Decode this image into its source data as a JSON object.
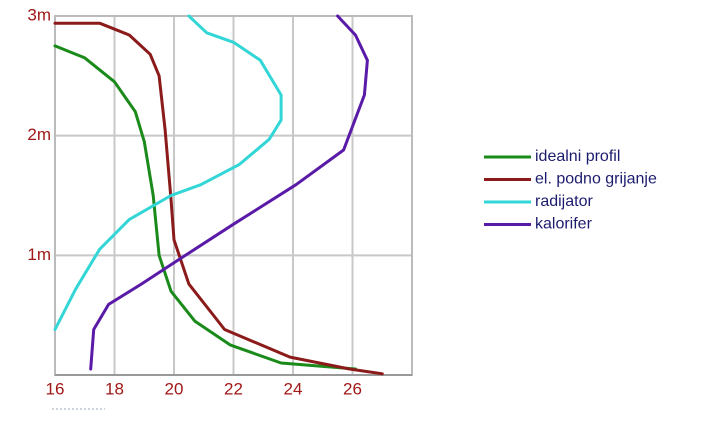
{
  "chart_data": {
    "type": "line",
    "xlim": [
      16,
      28
    ],
    "ylim": [
      0,
      3
    ],
    "xticks": [
      16,
      18,
      20,
      22,
      24,
      26
    ],
    "yticks": [
      {
        "value": 1,
        "label": "1m"
      },
      {
        "value": 2,
        "label": "2m"
      },
      {
        "value": 3,
        "label": "3m"
      }
    ],
    "grid": true,
    "legend": "right",
    "series": [
      {
        "name": "idealni profil",
        "color": "#1a8a1a",
        "x": [
          16,
          17,
          18,
          18.7,
          19,
          19.3,
          19.5,
          19.9,
          20.7,
          21.9,
          23.6,
          26.1
        ],
        "values": [
          2.75,
          2.65,
          2.45,
          2.2,
          1.95,
          1.5,
          1.0,
          0.7,
          0.45,
          0.25,
          0.1,
          0.05
        ]
      },
      {
        "name": "el. podno grijanje",
        "color": "#8b1a1a",
        "x": [
          16,
          17.5,
          18.5,
          19.2,
          19.5,
          19.7,
          19.9,
          20.0,
          20.5,
          21.7,
          23.9,
          25.9,
          27
        ],
        "values": [
          2.94,
          2.94,
          2.84,
          2.68,
          2.5,
          2.05,
          1.47,
          1.13,
          0.76,
          0.38,
          0.15,
          0.05,
          0.01
        ]
      },
      {
        "name": "radijator",
        "color": "#33d6d6",
        "x": [
          20.5,
          21.1,
          22,
          22.9,
          23.6,
          23.6,
          23.2,
          22.2,
          20.9,
          19.9,
          18.5,
          17.5,
          16.7,
          16
        ],
        "values": [
          3.0,
          2.86,
          2.78,
          2.63,
          2.34,
          2.13,
          1.97,
          1.76,
          1.59,
          1.5,
          1.3,
          1.05,
          0.72,
          0.38
        ]
      },
      {
        "name": "kalorifer",
        "color": "#5a1aa8",
        "x": [
          25.5,
          26.1,
          26.5,
          26.4,
          25.7,
          24.1,
          22,
          20.2,
          18.9,
          17.8,
          17.3,
          17.2
        ],
        "values": [
          3.0,
          2.84,
          2.63,
          2.34,
          1.88,
          1.59,
          1.26,
          0.97,
          0.76,
          0.59,
          0.38,
          0.05
        ]
      }
    ]
  }
}
